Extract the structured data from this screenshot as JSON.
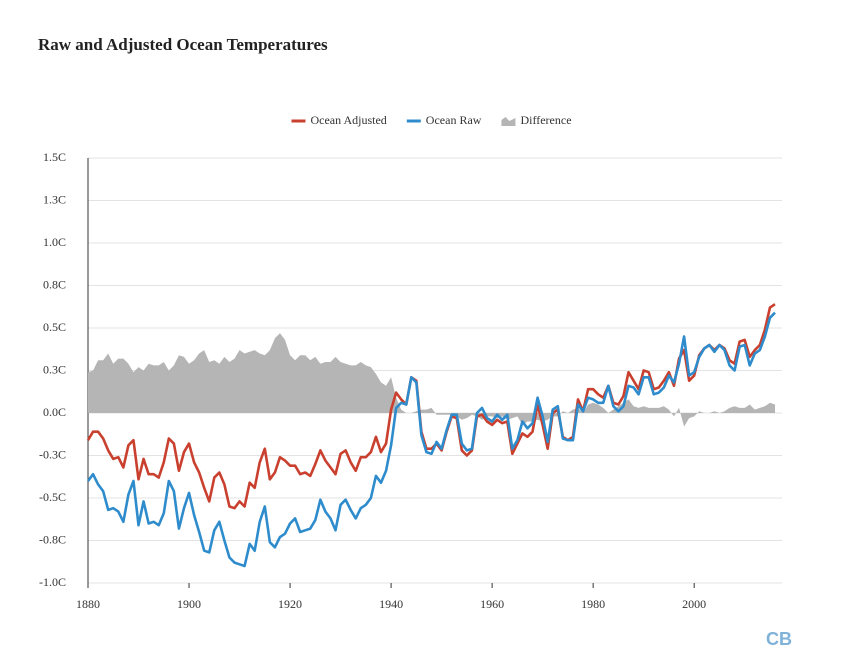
{
  "chart_data": {
    "type": "line",
    "title": "Raw and Adjusted Ocean Temperatures",
    "x": [
      1880,
      1881,
      1882,
      1883,
      1884,
      1885,
      1886,
      1887,
      1888,
      1889,
      1890,
      1891,
      1892,
      1893,
      1894,
      1895,
      1896,
      1897,
      1898,
      1899,
      1900,
      1901,
      1902,
      1903,
      1904,
      1905,
      1906,
      1907,
      1908,
      1909,
      1910,
      1911,
      1912,
      1913,
      1914,
      1915,
      1916,
      1917,
      1918,
      1919,
      1920,
      1921,
      1922,
      1923,
      1924,
      1925,
      1926,
      1927,
      1928,
      1929,
      1930,
      1931,
      1932,
      1933,
      1934,
      1935,
      1936,
      1937,
      1938,
      1939,
      1940,
      1941,
      1942,
      1943,
      1944,
      1945,
      1946,
      1947,
      1948,
      1949,
      1950,
      1951,
      1952,
      1953,
      1954,
      1955,
      1956,
      1957,
      1958,
      1959,
      1960,
      1961,
      1962,
      1963,
      1964,
      1965,
      1966,
      1967,
      1968,
      1969,
      1970,
      1971,
      1972,
      1973,
      1974,
      1975,
      1976,
      1977,
      1978,
      1979,
      1980,
      1981,
      1982,
      1983,
      1984,
      1985,
      1986,
      1987,
      1988,
      1989,
      1990,
      1991,
      1992,
      1993,
      1994,
      1995,
      1996,
      1997,
      1998,
      1999,
      2000,
      2001,
      2002,
      2003,
      2004,
      2005,
      2006,
      2007,
      2008,
      2009,
      2010,
      2011,
      2012,
      2013,
      2014,
      2015,
      2016
    ],
    "series": [
      {
        "name": "Ocean Adjusted",
        "color": "#c9402f",
        "style": "line",
        "values": [
          -0.16,
          -0.11,
          -0.11,
          -0.15,
          -0.22,
          -0.27,
          -0.26,
          -0.32,
          -0.19,
          -0.16,
          -0.39,
          -0.27,
          -0.36,
          -0.36,
          -0.38,
          -0.29,
          -0.15,
          -0.18,
          -0.34,
          -0.23,
          -0.18,
          -0.29,
          -0.35,
          -0.44,
          -0.52,
          -0.38,
          -0.35,
          -0.42,
          -0.55,
          -0.56,
          -0.52,
          -0.55,
          -0.41,
          -0.44,
          -0.29,
          -0.21,
          -0.39,
          -0.35,
          -0.26,
          -0.28,
          -0.31,
          -0.31,
          -0.36,
          -0.35,
          -0.37,
          -0.3,
          -0.22,
          -0.28,
          -0.32,
          -0.36,
          -0.24,
          -0.22,
          -0.29,
          -0.34,
          -0.26,
          -0.26,
          -0.23,
          -0.14,
          -0.23,
          -0.18,
          0.02,
          0.12,
          0.08,
          0.05,
          0.21,
          0.19,
          -0.11,
          -0.21,
          -0.21,
          -0.18,
          -0.22,
          -0.11,
          -0.02,
          -0.03,
          -0.22,
          -0.25,
          -0.22,
          -0.02,
          -0.01,
          -0.05,
          -0.07,
          -0.04,
          -0.06,
          -0.05,
          -0.24,
          -0.18,
          -0.12,
          -0.14,
          -0.11,
          0.05,
          -0.07,
          -0.21,
          0.0,
          0.02,
          -0.14,
          -0.16,
          -0.14,
          0.08,
          0.01,
          0.14,
          0.14,
          0.11,
          0.09,
          0.16,
          0.06,
          0.05,
          0.1,
          0.24,
          0.19,
          0.14,
          0.25,
          0.24,
          0.14,
          0.15,
          0.19,
          0.24,
          0.16,
          0.32,
          0.37,
          0.19,
          0.22,
          0.34,
          0.38,
          0.4,
          0.37,
          0.4,
          0.38,
          0.31,
          0.29,
          0.42,
          0.43,
          0.33,
          0.37,
          0.4,
          0.49,
          0.62,
          0.64
        ]
      },
      {
        "name": "Ocean Raw",
        "color": "#2f8ccc",
        "style": "line",
        "values": [
          -0.4,
          -0.36,
          -0.42,
          -0.46,
          -0.57,
          -0.56,
          -0.58,
          -0.64,
          -0.48,
          -0.4,
          -0.66,
          -0.52,
          -0.65,
          -0.64,
          -0.66,
          -0.59,
          -0.4,
          -0.46,
          -0.68,
          -0.56,
          -0.47,
          -0.6,
          -0.7,
          -0.81,
          -0.82,
          -0.69,
          -0.64,
          -0.75,
          -0.85,
          -0.88,
          -0.89,
          -0.9,
          -0.77,
          -0.81,
          -0.64,
          -0.55,
          -0.76,
          -0.79,
          -0.73,
          -0.71,
          -0.65,
          -0.62,
          -0.7,
          -0.69,
          -0.68,
          -0.63,
          -0.51,
          -0.58,
          -0.62,
          -0.69,
          -0.54,
          -0.51,
          -0.57,
          -0.62,
          -0.56,
          -0.54,
          -0.5,
          -0.37,
          -0.41,
          -0.34,
          -0.19,
          0.03,
          0.06,
          0.05,
          0.21,
          0.18,
          -0.13,
          -0.23,
          -0.24,
          -0.17,
          -0.21,
          -0.1,
          -0.01,
          -0.01,
          -0.18,
          -0.22,
          -0.21,
          0.0,
          0.03,
          -0.03,
          -0.05,
          -0.01,
          -0.04,
          -0.01,
          -0.21,
          -0.16,
          -0.05,
          -0.09,
          -0.06,
          0.09,
          -0.02,
          -0.17,
          0.02,
          0.04,
          -0.15,
          -0.16,
          -0.16,
          0.05,
          0.01,
          0.09,
          0.08,
          0.06,
          0.06,
          0.16,
          0.04,
          0.01,
          0.04,
          0.16,
          0.15,
          0.11,
          0.21,
          0.21,
          0.11,
          0.12,
          0.15,
          0.22,
          0.18,
          0.29,
          0.45,
          0.22,
          0.24,
          0.33,
          0.38,
          0.4,
          0.36,
          0.4,
          0.37,
          0.28,
          0.25,
          0.39,
          0.4,
          0.28,
          0.35,
          0.37,
          0.45,
          0.56,
          0.59
        ]
      },
      {
        "name": "Difference",
        "color": "#b5b5b5",
        "style": "area",
        "values": [
          0.24,
          0.25,
          0.31,
          0.31,
          0.35,
          0.29,
          0.32,
          0.32,
          0.29,
          0.24,
          0.27,
          0.25,
          0.29,
          0.28,
          0.28,
          0.3,
          0.25,
          0.28,
          0.34,
          0.33,
          0.29,
          0.31,
          0.35,
          0.37,
          0.3,
          0.31,
          0.29,
          0.33,
          0.3,
          0.32,
          0.37,
          0.35,
          0.36,
          0.37,
          0.35,
          0.34,
          0.37,
          0.44,
          0.47,
          0.43,
          0.34,
          0.31,
          0.34,
          0.34,
          0.31,
          0.33,
          0.29,
          0.3,
          0.3,
          0.33,
          0.3,
          0.29,
          0.28,
          0.28,
          0.3,
          0.28,
          0.27,
          0.23,
          0.18,
          0.16,
          0.21,
          0.09,
          0.02,
          0.0,
          0.0,
          0.01,
          0.02,
          0.02,
          0.03,
          -0.01,
          -0.01,
          -0.01,
          -0.01,
          -0.02,
          -0.04,
          -0.03,
          -0.01,
          -0.02,
          -0.04,
          -0.02,
          -0.02,
          -0.03,
          -0.02,
          -0.04,
          -0.03,
          -0.02,
          -0.07,
          -0.05,
          -0.05,
          -0.04,
          -0.05,
          -0.04,
          -0.02,
          -0.02,
          0.01,
          0.0,
          0.02,
          0.03,
          0.0,
          0.05,
          0.06,
          0.05,
          0.03,
          0.0,
          0.02,
          0.04,
          0.06,
          0.08,
          0.04,
          0.03,
          0.04,
          0.03,
          0.03,
          0.03,
          0.04,
          0.02,
          -0.02,
          0.03,
          -0.08,
          -0.03,
          -0.02,
          0.01,
          0.0,
          0.0,
          0.01,
          0.0,
          0.01,
          0.03,
          0.04,
          0.03,
          0.03,
          0.05,
          0.02,
          0.03,
          0.04,
          0.06,
          0.05
        ]
      }
    ],
    "xlim": [
      1880,
      2016
    ],
    "xticks": [
      1880,
      1900,
      1920,
      1940,
      1960,
      1980,
      2000
    ],
    "ylim": [
      -1,
      1.5
    ],
    "yticks": [
      {
        "value": -1,
        "label": "-1.0C"
      },
      {
        "value": -0.75,
        "label": "-0.8C"
      },
      {
        "value": -0.5,
        "label": "-0.5C"
      },
      {
        "value": -0.25,
        "label": "-0.3C"
      },
      {
        "value": 0,
        "label": "0.0C"
      },
      {
        "value": 0.25,
        "label": "0.3C"
      },
      {
        "value": 0.5,
        "label": "0.5C"
      },
      {
        "value": 0.75,
        "label": "0.8C"
      },
      {
        "value": 1,
        "label": "1.0C"
      },
      {
        "value": 1.25,
        "label": "1.3C"
      },
      {
        "value": 1.5,
        "label": "1.5C"
      }
    ],
    "grid": true,
    "legend": "top"
  },
  "branding": "CB"
}
